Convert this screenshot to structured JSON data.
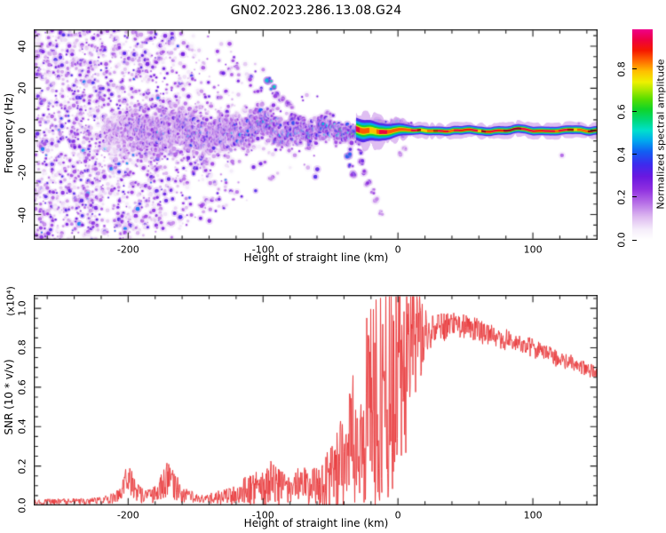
{
  "title": "GN02.2023.286.13.08.G24",
  "colors": {
    "background": "#ffffff",
    "frame": "#1a1a1a",
    "snr_line": "#e9393b"
  },
  "chart_data": [
    {
      "type": "heatmap",
      "title": "",
      "xlabel": "Height of straight line (km)",
      "ylabel": "Frequency (Hz)",
      "xlim": [
        -270,
        148
      ],
      "ylim": [
        -52,
        48
      ],
      "xticks": [
        -200,
        -100,
        0,
        100
      ],
      "xtick_minor_step": 20,
      "yticks": [
        40,
        20,
        0,
        -20,
        -40
      ],
      "ytick_minor_step": 5,
      "grid": false,
      "colorbar": {
        "label": "Normalized spectral amplitude",
        "ticks": [
          0.0,
          0.2,
          0.4,
          0.6,
          0.8
        ],
        "range": [
          0,
          0.985
        ],
        "stops": [
          [
            0,
            "#ffffff"
          ],
          [
            0.05,
            "#f5edfa"
          ],
          [
            0.11,
            "#ddb9f0"
          ],
          [
            0.18,
            "#b46ae6"
          ],
          [
            0.24,
            "#8f2fe0"
          ],
          [
            0.3,
            "#6a18e0"
          ],
          [
            0.36,
            "#3c2bee"
          ],
          [
            0.42,
            "#1160f2"
          ],
          [
            0.47,
            "#00a8ee"
          ],
          [
            0.52,
            "#00e0cc"
          ],
          [
            0.57,
            "#00d878"
          ],
          [
            0.62,
            "#10d428"
          ],
          [
            0.67,
            "#5ade00"
          ],
          [
            0.71,
            "#a8e800"
          ],
          [
            0.75,
            "#eef000"
          ],
          [
            0.8,
            "#ffc000"
          ],
          [
            0.85,
            "#ff6a00"
          ],
          [
            0.9,
            "#f51800"
          ],
          [
            0.95,
            "#ee0040"
          ],
          [
            1,
            "#ef0089"
          ]
        ]
      },
      "band_envelope": [
        [
          -218,
          0,
          8,
          0.3
        ],
        [
          -205,
          -1,
          10,
          0.42
        ],
        [
          -190,
          1,
          12,
          0.48
        ],
        [
          -175,
          -2,
          11,
          0.5
        ],
        [
          -160,
          2,
          12,
          0.5
        ],
        [
          -145,
          -1,
          11,
          0.52
        ],
        [
          -130,
          1,
          10,
          0.55
        ],
        [
          -115,
          -2,
          10,
          0.55
        ],
        [
          -103,
          2,
          9,
          0.58
        ],
        [
          -95,
          3,
          9,
          0.6
        ],
        [
          -85,
          -1,
          8,
          0.62
        ],
        [
          -75,
          0,
          8,
          0.62
        ],
        [
          -65,
          -2,
          7,
          0.65
        ],
        [
          -55,
          1,
          6.5,
          0.68
        ],
        [
          -45,
          0,
          5.5,
          0.7
        ],
        [
          -38,
          -1,
          5,
          0.72
        ],
        [
          -30,
          0,
          4.2,
          0.8
        ],
        [
          -22,
          1,
          3.6,
          0.85
        ],
        [
          -15,
          1.5,
          3.2,
          0.9
        ],
        [
          -8,
          0,
          3,
          0.95
        ],
        [
          0,
          0,
          3.4,
          1.0
        ],
        [
          8,
          0,
          3,
          1.0
        ]
      ],
      "noise_profile": [
        [
          -270,
          0.5,
          52
        ],
        [
          -245,
          0.52,
          52
        ],
        [
          -225,
          0.45,
          52
        ],
        [
          -216,
          0.18,
          50
        ],
        [
          -208,
          0.32,
          50
        ],
        [
          -195,
          0.32,
          48
        ],
        [
          -180,
          0.3,
          46
        ],
        [
          -165,
          0.26,
          44
        ],
        [
          -150,
          0.24,
          42
        ],
        [
          -143,
          0.2,
          40
        ],
        [
          -133,
          0.12,
          36
        ],
        [
          -124,
          0.1,
          34
        ],
        [
          -112,
          0.07,
          30
        ],
        [
          -100,
          0.05,
          27
        ],
        [
          -88,
          0.04,
          24
        ],
        [
          -75,
          0.03,
          20
        ],
        [
          -60,
          0.02,
          16
        ],
        [
          -45,
          0.013,
          12
        ],
        [
          -30,
          0.008,
          10
        ],
        [
          -10,
          0.004,
          8
        ],
        [
          20,
          0.003,
          6
        ],
        [
          148,
          0.003,
          6
        ]
      ],
      "features": [
        [
          -96,
          24,
          0.5,
          3
        ],
        [
          -93,
          20,
          0.55,
          3
        ],
        [
          -90,
          17,
          0.3,
          2
        ],
        [
          -86,
          15,
          0.25,
          2
        ],
        [
          -82,
          13,
          0.25,
          2
        ],
        [
          -78,
          11,
          0.2,
          2
        ],
        [
          -37,
          -12,
          0.45,
          2
        ],
        [
          -35,
          -17,
          0.35,
          2
        ],
        [
          -33,
          -21,
          0.3,
          2
        ],
        [
          -30,
          -6,
          0.35,
          2
        ],
        [
          -28,
          -10,
          0.3,
          2
        ],
        [
          -27,
          -15,
          0.3,
          2
        ],
        [
          -24,
          -20,
          0.25,
          2
        ],
        [
          -22,
          -25,
          0.25,
          2
        ],
        [
          -19,
          -29,
          0.22,
          2
        ],
        [
          -16,
          -33,
          0.2,
          2
        ],
        [
          -12,
          -39,
          0.18,
          2
        ],
        [
          2,
          -11,
          0.2,
          1.5
        ],
        [
          5,
          -9,
          0.18,
          1.5
        ]
      ],
      "thin_line": {
        "x_start": -31,
        "x_end": 148,
        "core_halfwidth_hz": 0.5,
        "fringe_halfwidth_hz": 3.1
      }
    },
    {
      "type": "line",
      "title": "",
      "xlabel": "Height of straight line (km)",
      "ylabel": "SNR (10 * v/v)",
      "scale_label": "(x10⁴)",
      "xlim": [
        -270,
        148
      ],
      "ylim": [
        0,
        1.068
      ],
      "xticks": [
        -200,
        -100,
        0,
        100
      ],
      "xtick_minor_step": 20,
      "yticks": [
        0.0,
        0.2,
        0.4,
        0.6,
        0.8,
        1.0
      ],
      "ytick_minor_step": 0.05,
      "grid": false,
      "series": [
        {
          "name": "SNR",
          "color": "#e9393b",
          "envelope_columns": [
            "height_km",
            "snr_base",
            "noise_amplitude"
          ],
          "envelope": [
            [
              -270,
              0.018,
              0.012
            ],
            [
              -250,
              0.02,
              0.012
            ],
            [
              -230,
              0.022,
              0.014
            ],
            [
              -215,
              0.03,
              0.018
            ],
            [
              -207,
              0.05,
              0.03
            ],
            [
              -201,
              0.12,
              0.07
            ],
            [
              -197,
              0.1,
              0.06
            ],
            [
              -192,
              0.06,
              0.04
            ],
            [
              -185,
              0.05,
              0.03
            ],
            [
              -178,
              0.06,
              0.04
            ],
            [
              -172,
              0.13,
              0.08
            ],
            [
              -167,
              0.11,
              0.07
            ],
            [
              -161,
              0.06,
              0.04
            ],
            [
              -152,
              0.04,
              0.025
            ],
            [
              -142,
              0.035,
              0.02
            ],
            [
              -132,
              0.04,
              0.03
            ],
            [
              -122,
              0.05,
              0.04
            ],
            [
              -113,
              0.08,
              0.06
            ],
            [
              -106,
              0.09,
              0.07
            ],
            [
              -99,
              0.08,
              0.07
            ],
            [
              -93,
              0.12,
              0.1
            ],
            [
              -87,
              0.09,
              0.07
            ],
            [
              -80,
              0.08,
              0.06
            ],
            [
              -73,
              0.11,
              0.09
            ],
            [
              -66,
              0.09,
              0.07
            ],
            [
              -60,
              0.1,
              0.09
            ],
            [
              -54,
              0.12,
              0.11
            ],
            [
              -48,
              0.15,
              0.14
            ],
            [
              -43,
              0.2,
              0.18
            ],
            [
              -38,
              0.26,
              0.24
            ],
            [
              -33,
              0.32,
              0.3
            ],
            [
              -28,
              0.4,
              0.36
            ],
            [
              -23,
              0.45,
              0.42
            ],
            [
              -18,
              0.5,
              0.46
            ],
            [
              -13,
              0.55,
              0.5
            ],
            [
              -8,
              0.6,
              0.52
            ],
            [
              -4,
              0.62,
              0.5
            ],
            [
              0,
              0.66,
              0.45
            ],
            [
              4,
              0.7,
              0.42
            ],
            [
              8,
              0.74,
              0.38
            ],
            [
              12,
              0.8,
              0.3
            ],
            [
              16,
              0.85,
              0.18
            ],
            [
              20,
              0.87,
              0.1
            ],
            [
              25,
              0.89,
              0.07
            ],
            [
              30,
              0.9,
              0.06
            ],
            [
              36,
              0.91,
              0.06
            ],
            [
              42,
              0.92,
              0.055
            ],
            [
              48,
              0.91,
              0.05
            ],
            [
              55,
              0.9,
              0.05
            ],
            [
              62,
              0.88,
              0.05
            ],
            [
              70,
              0.86,
              0.045
            ],
            [
              80,
              0.84,
              0.045
            ],
            [
              90,
              0.82,
              0.04
            ],
            [
              100,
              0.8,
              0.04
            ],
            [
              110,
              0.77,
              0.04
            ],
            [
              120,
              0.74,
              0.035
            ],
            [
              130,
              0.72,
              0.035
            ],
            [
              140,
              0.69,
              0.03
            ],
            [
              148,
              0.67,
              0.03
            ]
          ]
        }
      ]
    }
  ]
}
